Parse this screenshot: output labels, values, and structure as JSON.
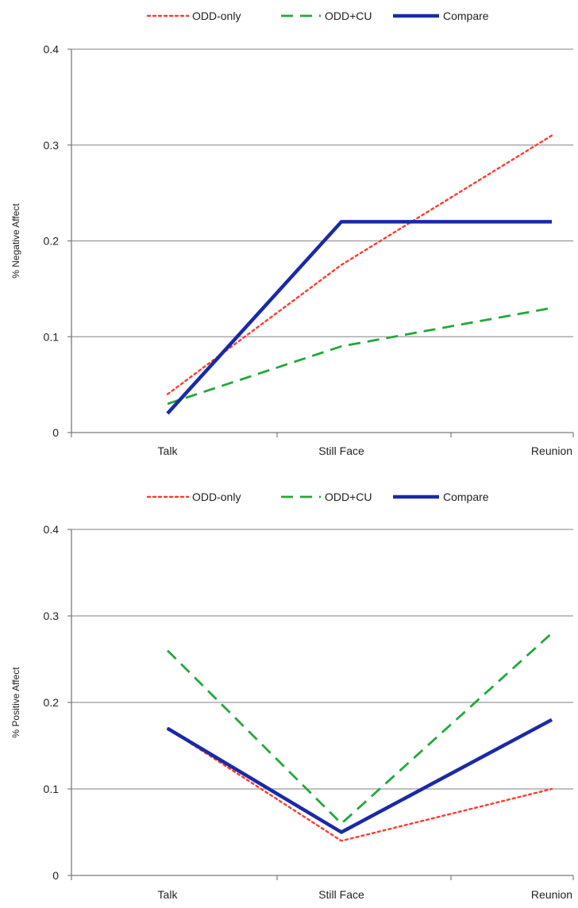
{
  "chart_data": [
    {
      "type": "line",
      "title": "",
      "xlabel": "",
      "ylabel": "% Negative Affect",
      "categories": [
        "Talk",
        "Still Face",
        "Reunion"
      ],
      "ylim": [
        0,
        0.4
      ],
      "yticks": [
        0,
        0.1,
        0.2,
        0.3,
        0.4
      ],
      "ytick_labels": [
        "0",
        "0.1",
        "0.2",
        "0.3",
        "0.4"
      ],
      "grid": true,
      "legend_position": "top",
      "series": [
        {
          "name": "ODD-only",
          "values": [
            0.04,
            0.175,
            0.31
          ],
          "color": "#ff3b2f",
          "style": "dotted"
        },
        {
          "name": "ODD+CU",
          "values": [
            0.03,
            0.09,
            0.13
          ],
          "color": "#22a83a",
          "style": "dashed"
        },
        {
          "name": "Compare",
          "values": [
            0.02,
            0.22,
            0.22
          ],
          "color": "#1a2aa6",
          "style": "solid"
        }
      ]
    },
    {
      "type": "line",
      "title": "",
      "xlabel": "",
      "ylabel": "% Positive Affect",
      "categories": [
        "Talk",
        "Still Face",
        "Reunion"
      ],
      "ylim": [
        0,
        0.4
      ],
      "yticks": [
        0,
        0.1,
        0.2,
        0.3,
        0.4
      ],
      "ytick_labels": [
        "0",
        "0.1",
        "0.2",
        "0.3",
        "0.4"
      ],
      "grid": true,
      "legend_position": "top",
      "series": [
        {
          "name": "ODD-only",
          "values": [
            0.17,
            0.04,
            0.1
          ],
          "color": "#ff3b2f",
          "style": "dotted"
        },
        {
          "name": "ODD+CU",
          "values": [
            0.26,
            0.06,
            0.28
          ],
          "color": "#22a83a",
          "style": "dashed"
        },
        {
          "name": "Compare",
          "values": [
            0.17,
            0.05,
            0.18
          ],
          "color": "#1a2aa6",
          "style": "solid"
        }
      ]
    }
  ]
}
